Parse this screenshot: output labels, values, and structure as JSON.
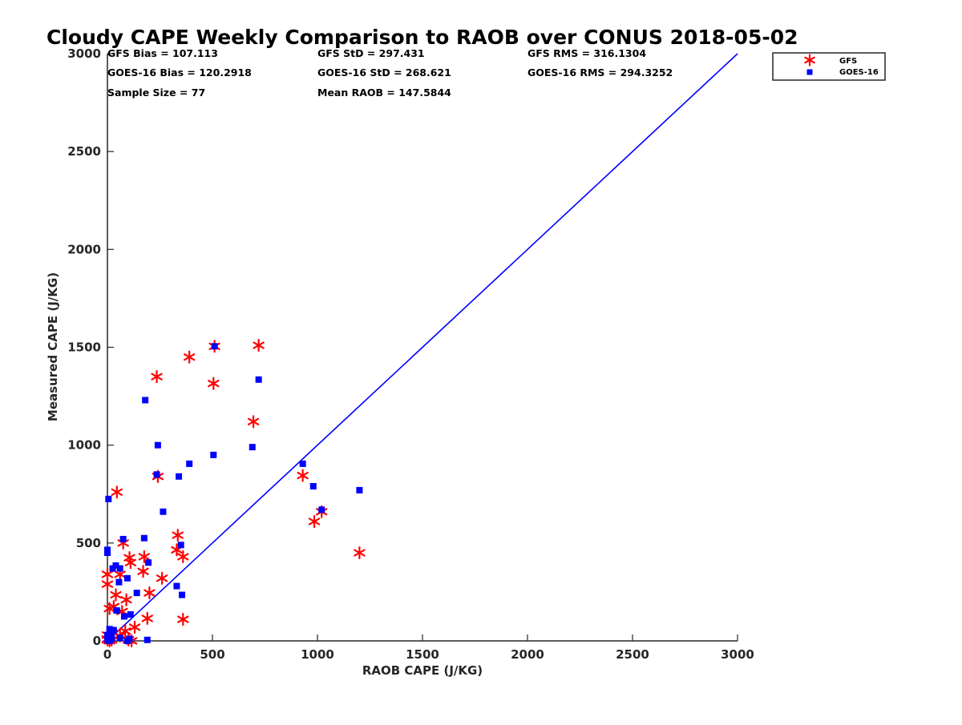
{
  "chart_data": {
    "type": "scatter",
    "title": "Cloudy CAPE Weekly Comparison to RAOB over CONUS 2018-05-02",
    "xlabel": "RAOB CAPE (J/KG)",
    "ylabel": "Measured CAPE (J/KG)",
    "xlim": [
      0,
      3000
    ],
    "ylim": [
      0,
      3000
    ],
    "xticks": [
      0,
      500,
      1000,
      1500,
      2000,
      2500,
      3000
    ],
    "yticks": [
      0,
      500,
      1000,
      1500,
      2000,
      2500,
      3000
    ],
    "grid": false,
    "legend_position": "top-right",
    "stats": [
      [
        "GFS Bias = 107.113",
        "GFS StD = 297.431",
        "GFS RMS = 316.1304"
      ],
      [
        "GOES-16 Bias = 120.2918",
        "GOES-16 StD = 268.621",
        "GOES-16 RMS = 294.3252"
      ],
      [
        "Sample Size = 77",
        "Mean RAOB = 147.5844",
        ""
      ]
    ],
    "reference_line": {
      "x": [
        0,
        3000
      ],
      "y": [
        0,
        3000
      ],
      "color": "#0000ff"
    },
    "series": [
      {
        "name": "GFS",
        "marker": "asterisk",
        "color": "#ff0000",
        "points": [
          [
            510,
            1505
          ],
          [
            720,
            1510
          ],
          [
            390,
            1450
          ],
          [
            235,
            1350
          ],
          [
            505,
            1315
          ],
          [
            695,
            1120
          ],
          [
            240,
            840
          ],
          [
            930,
            845
          ],
          [
            1020,
            660
          ],
          [
            985,
            610
          ],
          [
            1200,
            450
          ],
          [
            45,
            760
          ],
          [
            335,
            540
          ],
          [
            75,
            500
          ],
          [
            330,
            465
          ],
          [
            360,
            430
          ],
          [
            105,
            425
          ],
          [
            175,
            430
          ],
          [
            110,
            400
          ],
          [
            170,
            355
          ],
          [
            60,
            340
          ],
          [
            0,
            340
          ],
          [
            260,
            320
          ],
          [
            0,
            290
          ],
          [
            40,
            235
          ],
          [
            200,
            245
          ],
          [
            90,
            210
          ],
          [
            10,
            165
          ],
          [
            30,
            175
          ],
          [
            70,
            150
          ],
          [
            360,
            110
          ],
          [
            190,
            115
          ],
          [
            130,
            70
          ],
          [
            85,
            50
          ],
          [
            30,
            40
          ],
          [
            0,
            30
          ],
          [
            60,
            25
          ],
          [
            0,
            10
          ],
          [
            20,
            5
          ],
          [
            100,
            5
          ],
          [
            115,
            0
          ],
          [
            10,
            0
          ],
          [
            0,
            5
          ]
        ]
      },
      {
        "name": "GOES-16",
        "marker": "square",
        "color": "#0000ff",
        "points": [
          [
            510,
            1505
          ],
          [
            720,
            1335
          ],
          [
            180,
            1230
          ],
          [
            240,
            1000
          ],
          [
            690,
            990
          ],
          [
            505,
            950
          ],
          [
            390,
            905
          ],
          [
            930,
            905
          ],
          [
            235,
            850
          ],
          [
            340,
            840
          ],
          [
            980,
            790
          ],
          [
            1200,
            770
          ],
          [
            5,
            725
          ],
          [
            1020,
            670
          ],
          [
            265,
            660
          ],
          [
            75,
            520
          ],
          [
            175,
            525
          ],
          [
            350,
            490
          ],
          [
            0,
            465
          ],
          [
            0,
            450
          ],
          [
            195,
            400
          ],
          [
            40,
            385
          ],
          [
            25,
            370
          ],
          [
            60,
            370
          ],
          [
            95,
            320
          ],
          [
            55,
            300
          ],
          [
            330,
            280
          ],
          [
            355,
            235
          ],
          [
            140,
            245
          ],
          [
            45,
            155
          ],
          [
            110,
            135
          ],
          [
            80,
            125
          ],
          [
            10,
            60
          ],
          [
            30,
            55
          ],
          [
            20,
            35
          ],
          [
            5,
            25
          ],
          [
            60,
            15
          ],
          [
            105,
            10
          ],
          [
            0,
            5
          ],
          [
            10,
            0
          ],
          [
            190,
            5
          ],
          [
            20,
            10
          ],
          [
            95,
            0
          ],
          [
            0,
            30
          ]
        ]
      }
    ]
  }
}
